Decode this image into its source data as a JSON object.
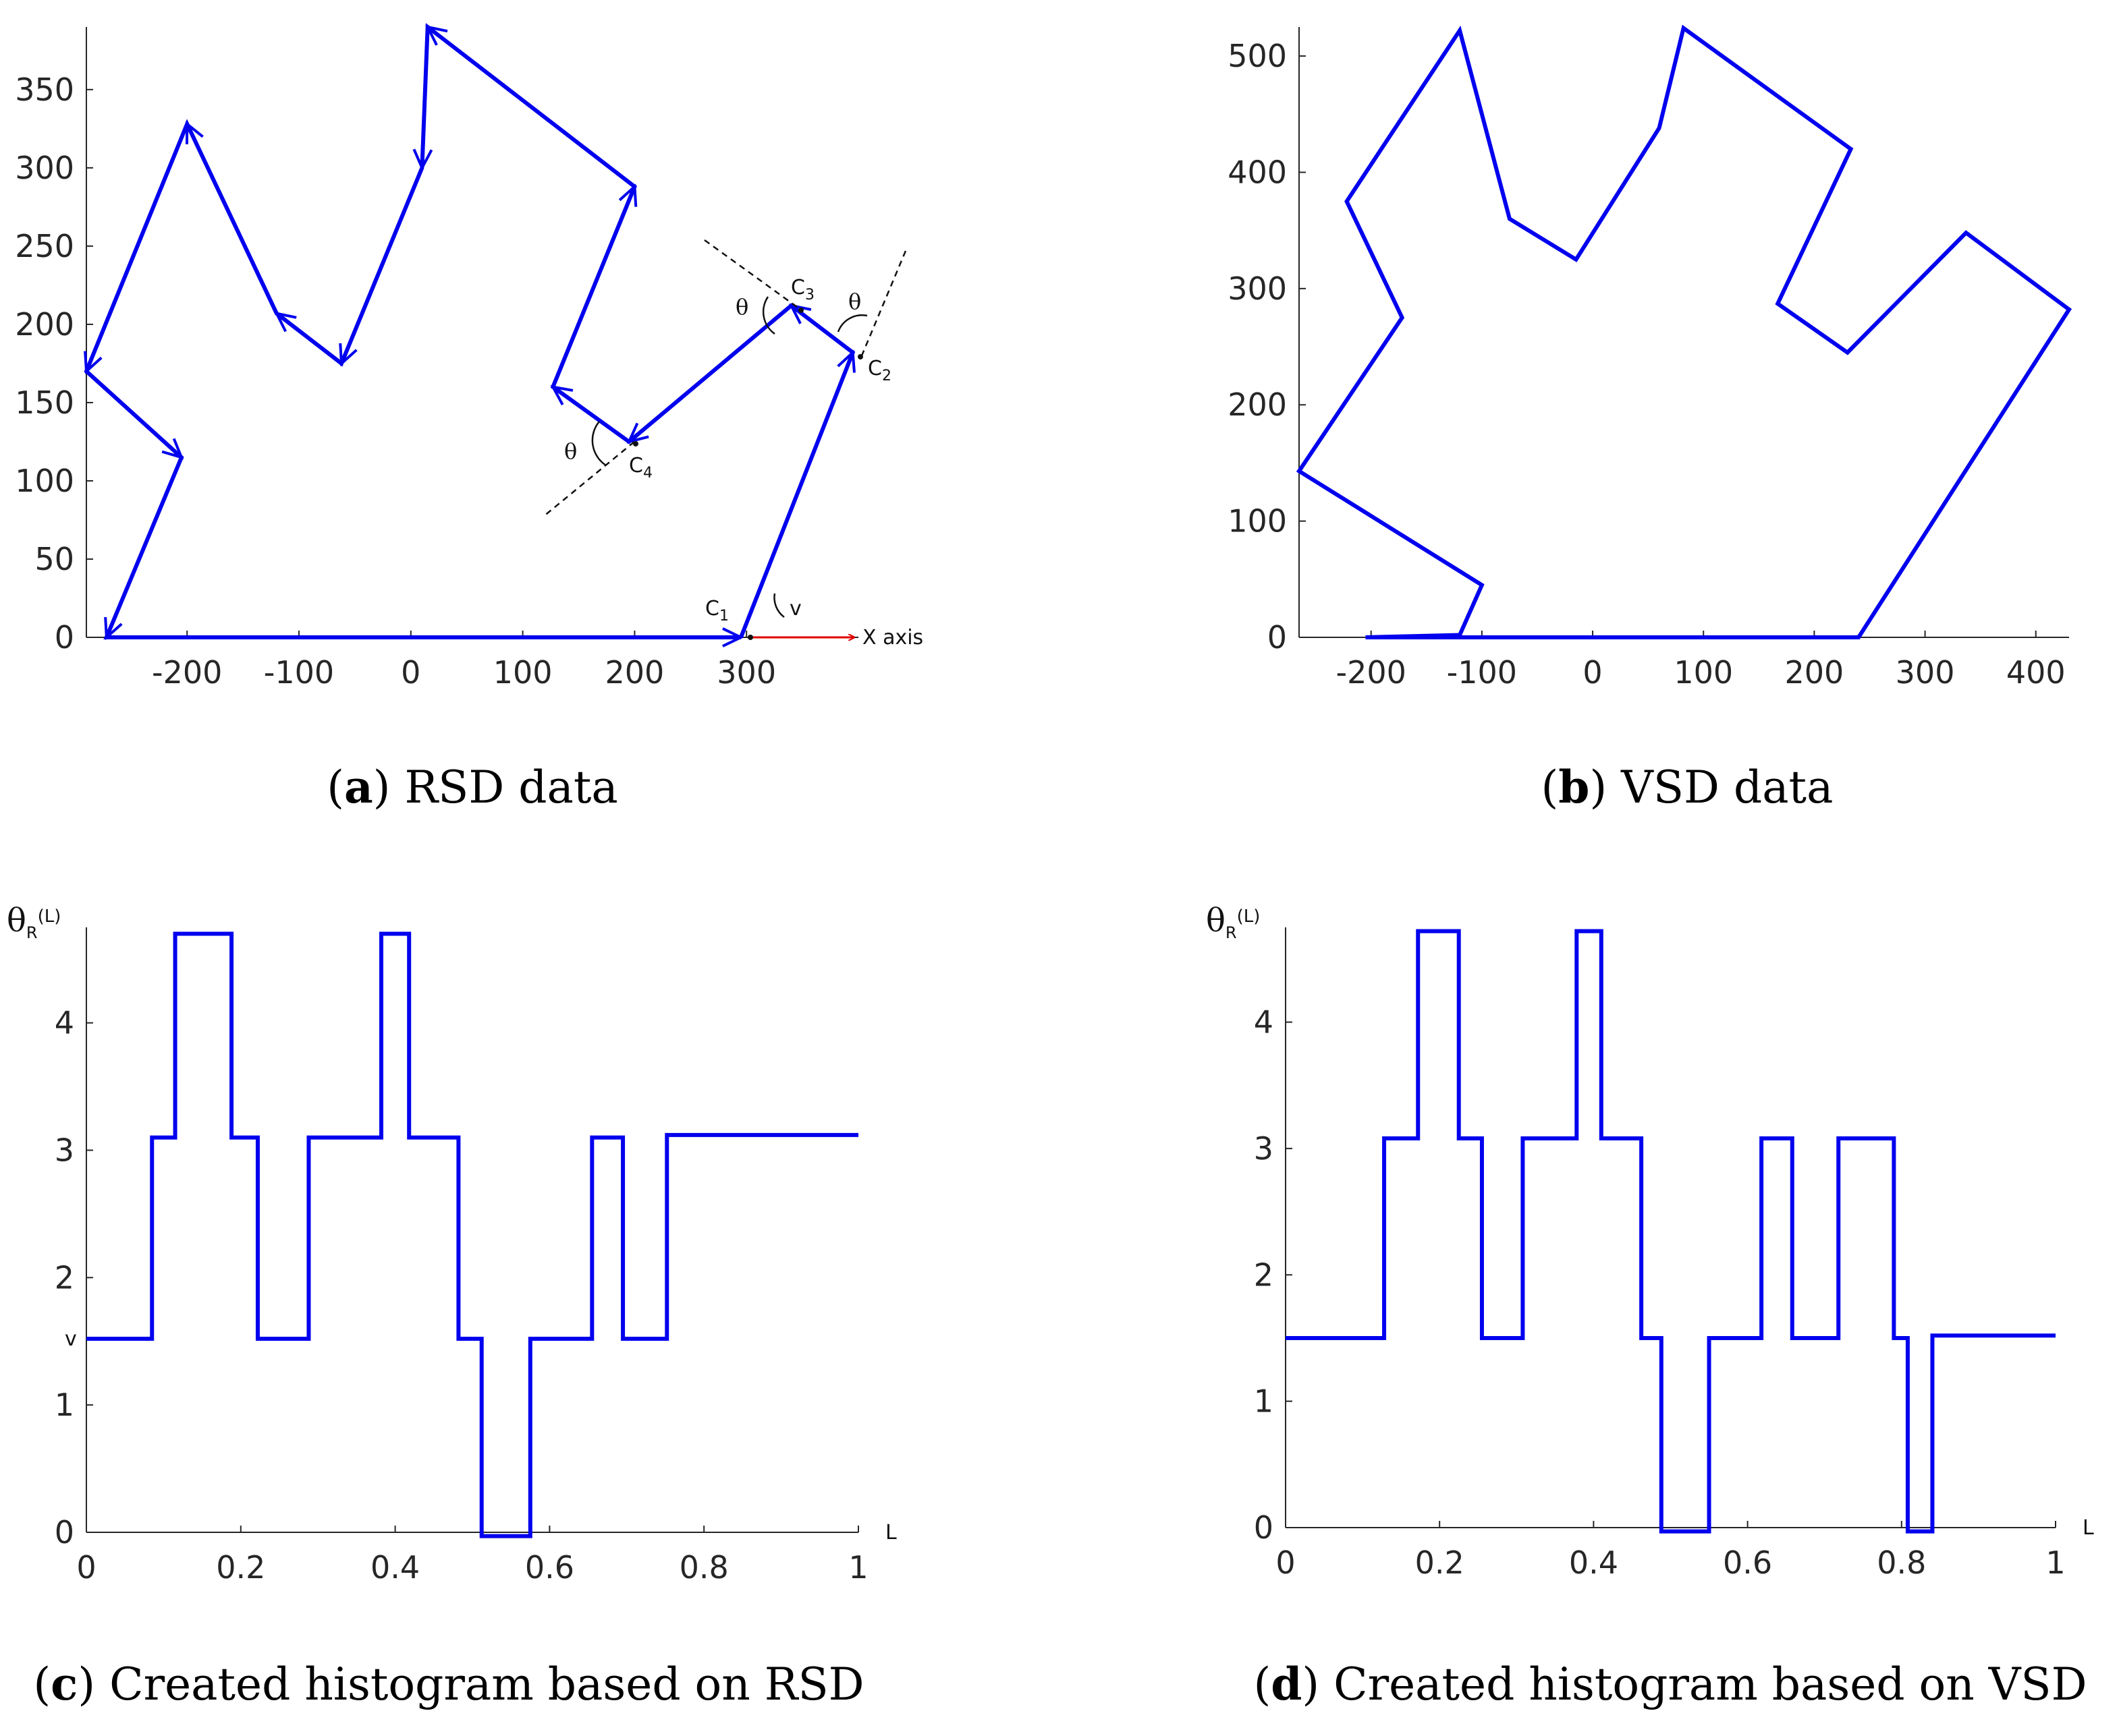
{
  "colors": {
    "series": "#0000ee",
    "axis": "#262626",
    "xaxis_arrow": "#e00000",
    "annotation": "#111111"
  },
  "chart_data": [
    {
      "id": "a",
      "type": "line",
      "caption_letter": "a",
      "caption_text": " RSD data",
      "xticks": [
        "-200",
        "-100",
        "0",
        "100",
        "200",
        "300"
      ],
      "yticks": [
        "0",
        "50",
        "100",
        "150",
        "200",
        "250",
        "300",
        "350"
      ],
      "xlim": [
        -290,
        400
      ],
      "ylim": [
        0,
        390
      ],
      "points": [
        [
          295,
          0
        ],
        [
          395,
          182
        ],
        [
          340,
          212
        ],
        [
          195,
          125
        ],
        [
          127,
          160
        ],
        [
          200,
          288
        ],
        [
          15,
          390
        ],
        [
          10,
          300
        ],
        [
          -62,
          175
        ],
        [
          -120,
          207
        ],
        [
          -200,
          328
        ],
        [
          -290,
          170
        ],
        [
          -205,
          115
        ],
        [
          -272,
          0
        ],
        [
          295,
          0
        ]
      ],
      "annotations": {
        "c1": "C",
        "c1_sub": "1",
        "c2": "C",
        "c2_sub": "2",
        "c3": "C",
        "c3_sub": "3",
        "c4": "C",
        "c4_sub": "4",
        "theta": "θ",
        "v": "v",
        "x_axis_label": "X axis"
      }
    },
    {
      "id": "b",
      "type": "line",
      "caption_letter": "b",
      "caption_text": " VSD data",
      "xticks": [
        "-200",
        "-100",
        "0",
        "100",
        "200",
        "300",
        "400"
      ],
      "yticks": [
        "0",
        "100",
        "200",
        "300",
        "400",
        "500"
      ],
      "xlim": [
        -265,
        430
      ],
      "ylim": [
        0,
        525
      ],
      "points": [
        [
          -205,
          0
        ],
        [
          -120,
          2
        ],
        [
          -100,
          45
        ],
        [
          -265,
          143
        ],
        [
          -172,
          275
        ],
        [
          -222,
          375
        ],
        [
          -120,
          522
        ],
        [
          -75,
          360
        ],
        [
          -15,
          325
        ],
        [
          60,
          438
        ],
        [
          82,
          524
        ],
        [
          233,
          420
        ],
        [
          167,
          287
        ],
        [
          230,
          245
        ],
        [
          337,
          348
        ],
        [
          430,
          282
        ],
        [
          240,
          0
        ],
        [
          -205,
          0
        ]
      ]
    },
    {
      "id": "c",
      "type": "line",
      "step": true,
      "caption_letter": "c",
      "caption_text": " Created histogram based on RSD",
      "xticks": [
        "0",
        "0.2",
        "0.4",
        "0.6",
        "0.8",
        "1"
      ],
      "yticks": [
        "0",
        "1",
        "2",
        "3",
        "4"
      ],
      "xlim": [
        0,
        1
      ],
      "ylim": [
        0,
        4.75
      ],
      "ylabel": "θ",
      "ylabel_sub": "R",
      "ylabel_arg": "(L)",
      "xlabel": "L",
      "y_marker_label": "v",
      "y_marker_value": 1.52,
      "x": [
        0,
        0.085,
        0.085,
        0.115,
        0.115,
        0.188,
        0.188,
        0.222,
        0.222,
        0.288,
        0.288,
        0.382,
        0.382,
        0.418,
        0.418,
        0.482,
        0.482,
        0.512,
        0.512,
        0.575,
        0.575,
        0.655,
        0.655,
        0.695,
        0.695,
        0.752,
        0.752,
        1
      ],
      "y": [
        1.52,
        1.52,
        3.1,
        3.1,
        4.7,
        4.7,
        3.1,
        3.1,
        1.52,
        1.52,
        3.1,
        3.1,
        4.7,
        4.7,
        3.1,
        3.1,
        1.52,
        1.52,
        -0.03,
        -0.03,
        1.52,
        1.52,
        3.1,
        3.1,
        1.52,
        1.52,
        3.12,
        3.12
      ]
    },
    {
      "id": "d",
      "type": "line",
      "step": true,
      "caption_letter": "d",
      "caption_text": " Created histogram based on VSD",
      "xticks": [
        "0",
        "0.2",
        "0.4",
        "0.6",
        "0.8",
        "1"
      ],
      "yticks": [
        "0",
        "1",
        "2",
        "3",
        "4"
      ],
      "xlim": [
        0,
        1
      ],
      "ylim": [
        0,
        4.75
      ],
      "ylabel": "θ",
      "ylabel_sub": "R",
      "ylabel_arg": "(L)",
      "xlabel": "L",
      "x": [
        0,
        0.128,
        0.128,
        0.172,
        0.172,
        0.225,
        0.225,
        0.255,
        0.255,
        0.308,
        0.308,
        0.378,
        0.378,
        0.41,
        0.41,
        0.462,
        0.462,
        0.488,
        0.488,
        0.55,
        0.55,
        0.618,
        0.618,
        0.658,
        0.658,
        0.718,
        0.718,
        0.79,
        0.79,
        0.808,
        0.808,
        0.84,
        0.84,
        1
      ],
      "y": [
        1.5,
        1.5,
        3.08,
        3.08,
        4.72,
        4.72,
        3.08,
        3.08,
        1.5,
        1.5,
        3.08,
        3.08,
        4.72,
        4.72,
        3.08,
        3.08,
        1.5,
        1.5,
        -0.03,
        -0.03,
        1.5,
        1.5,
        3.08,
        3.08,
        1.5,
        1.5,
        3.08,
        3.08,
        1.5,
        1.5,
        -0.03,
        -0.03,
        1.52,
        1.52
      ]
    }
  ]
}
